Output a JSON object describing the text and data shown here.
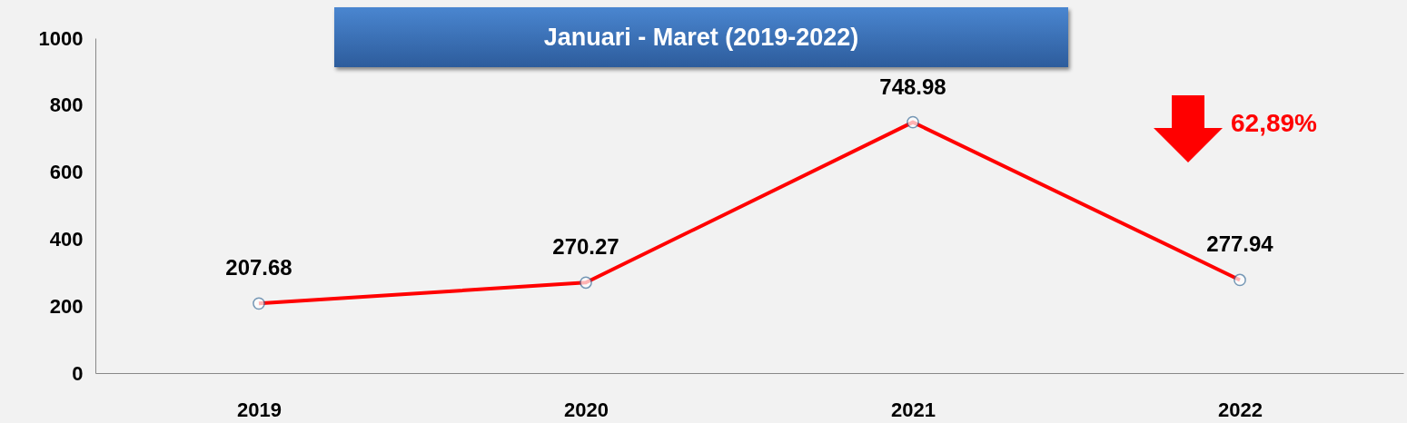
{
  "chart_data": {
    "type": "line",
    "title": "Januari - Maret (2019-2022)",
    "categories": [
      "2019",
      "2020",
      "2021",
      "2022"
    ],
    "series": [
      {
        "color": "#ff0000",
        "values": [
          207.68,
          270.27,
          748.98,
          277.94
        ]
      }
    ],
    "ylim": [
      0,
      1000
    ],
    "yticks": [
      0,
      200,
      400,
      600,
      800,
      1000
    ],
    "grid": false,
    "legend": false,
    "marker": "circle",
    "line_style": "solid",
    "data_labels": true,
    "annotations": [
      "62,89%"
    ]
  }
}
